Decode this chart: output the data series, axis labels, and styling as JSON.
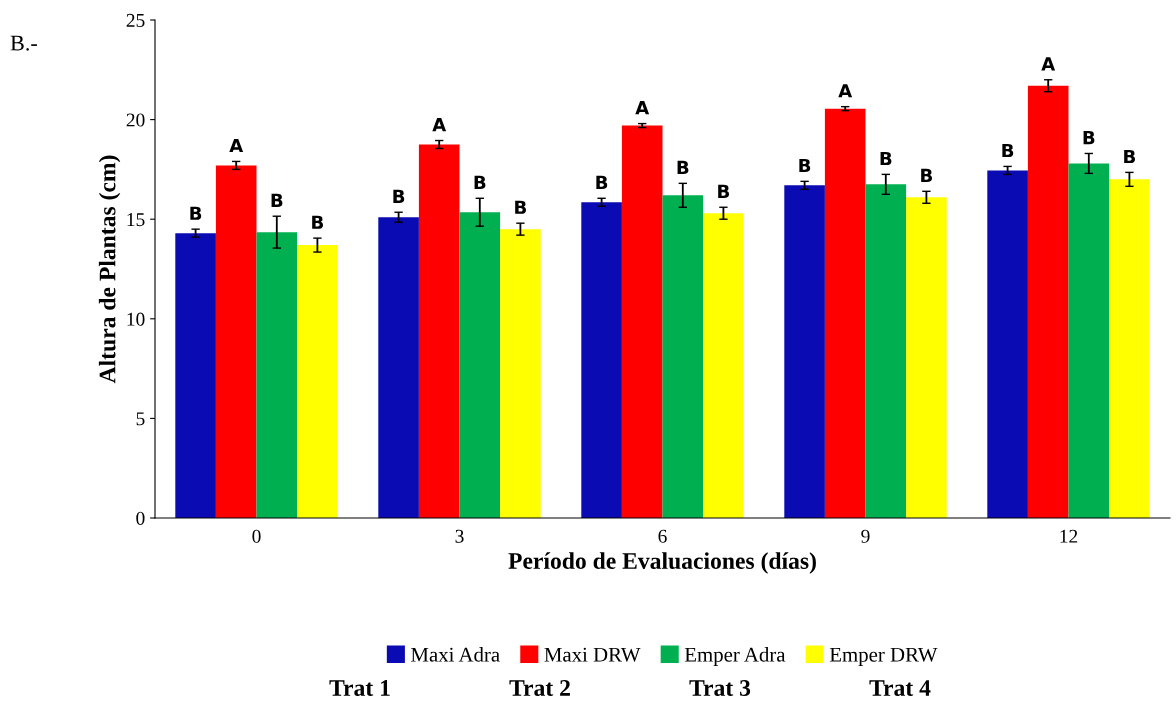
{
  "chart_data": {
    "type": "bar",
    "xlabel": "Período de Evaluaciones (días)",
    "ylabel": "Altura de Plantas (cm)",
    "categories": [
      "0",
      "3",
      "6",
      "9",
      "12"
    ],
    "ylim": [
      0,
      25
    ],
    "yticks": [
      0,
      5,
      10,
      15,
      20,
      25
    ],
    "grid": false,
    "legend": "bottom",
    "series": [
      {
        "name": "Maxi Adra",
        "color": "#0b0bb4",
        "values": [
          14.3,
          15.1,
          15.85,
          16.7,
          17.45
        ],
        "errors": [
          0.2,
          0.25,
          0.2,
          0.2,
          0.2
        ],
        "value_labels": [
          "B",
          "B",
          "B",
          "B",
          "B"
        ]
      },
      {
        "name": "Maxi DRW",
        "color": "#ff0000",
        "values": [
          17.7,
          18.75,
          19.7,
          20.55,
          21.7
        ],
        "errors": [
          0.2,
          0.2,
          0.1,
          0.1,
          0.3
        ],
        "value_labels": [
          "A",
          "A",
          "A",
          "A",
          "A"
        ]
      },
      {
        "name": "Emper Adra",
        "color": "#00b050",
        "values": [
          14.35,
          15.35,
          16.2,
          16.75,
          17.8
        ],
        "errors": [
          0.8,
          0.7,
          0.6,
          0.5,
          0.5
        ],
        "value_labels": [
          "B",
          "B",
          "B",
          "B",
          "B"
        ]
      },
      {
        "name": "Emper DRW",
        "color": "#ffff00",
        "values": [
          13.7,
          14.5,
          15.3,
          16.1,
          17.0
        ],
        "errors": [
          0.35,
          0.3,
          0.3,
          0.3,
          0.35
        ],
        "value_labels": [
          "B",
          "B",
          "B",
          "B",
          "B"
        ]
      }
    ],
    "annotations": [
      "B.-",
      "Trat 1",
      "Trat 2",
      "Trat 3",
      "Trat 4"
    ]
  }
}
